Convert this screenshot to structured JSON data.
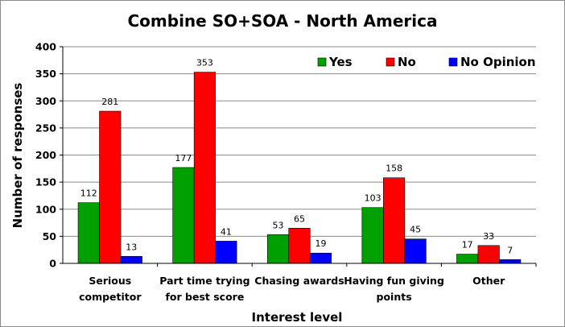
{
  "chart_data": {
    "type": "bar",
    "title": "Combine SO+SOA - North America",
    "xlabel": "Interest level",
    "ylabel": "Number of responses",
    "ylim": [
      0,
      400
    ],
    "yticks": [
      0,
      50,
      100,
      150,
      200,
      250,
      300,
      350,
      400
    ],
    "grid": true,
    "legend_position": "top-right",
    "categories": [
      [
        "Serious",
        "competitor"
      ],
      [
        "Part time trying",
        "for best score"
      ],
      [
        "Chasing awards"
      ],
      [
        "Having fun giving",
        "points"
      ],
      [
        "Other"
      ]
    ],
    "series": [
      {
        "name": "Yes",
        "color": "#00a000",
        "values": [
          112,
          177,
          53,
          103,
          17
        ]
      },
      {
        "name": "No",
        "color": "#ff0000",
        "values": [
          281,
          353,
          65,
          158,
          33
        ]
      },
      {
        "name": "No Opinion",
        "color": "#0000ff",
        "values": [
          13,
          41,
          19,
          45,
          7
        ]
      }
    ]
  }
}
